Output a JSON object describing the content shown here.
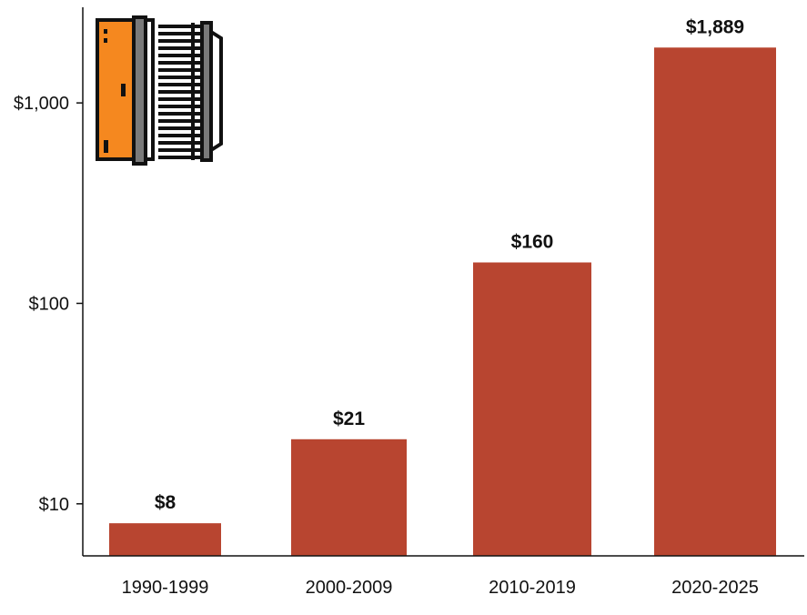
{
  "chart_data": {
    "type": "bar",
    "categories": [
      "1990-1999",
      "2000-2009",
      "2010-2019",
      "2020-2025"
    ],
    "values": [
      8,
      21,
      160,
      1889
    ],
    "data_labels": [
      "$8",
      "$21",
      "$160",
      "$1,889"
    ],
    "y_scale": "log",
    "ylim": [
      5.5,
      3000
    ],
    "y_ticks": [
      10,
      100,
      1000
    ],
    "y_tick_labels": [
      "$10",
      "$100",
      "$1,000"
    ],
    "grid": false,
    "legend": "none",
    "title": "",
    "xlabel": "",
    "ylabel": "",
    "colors": {
      "bar": "#b84530",
      "axis": "#111111",
      "icon_orange": "#f5881f",
      "icon_gray": "#7a7a7a"
    }
  },
  "icon": {
    "name": "cooler-icon"
  }
}
